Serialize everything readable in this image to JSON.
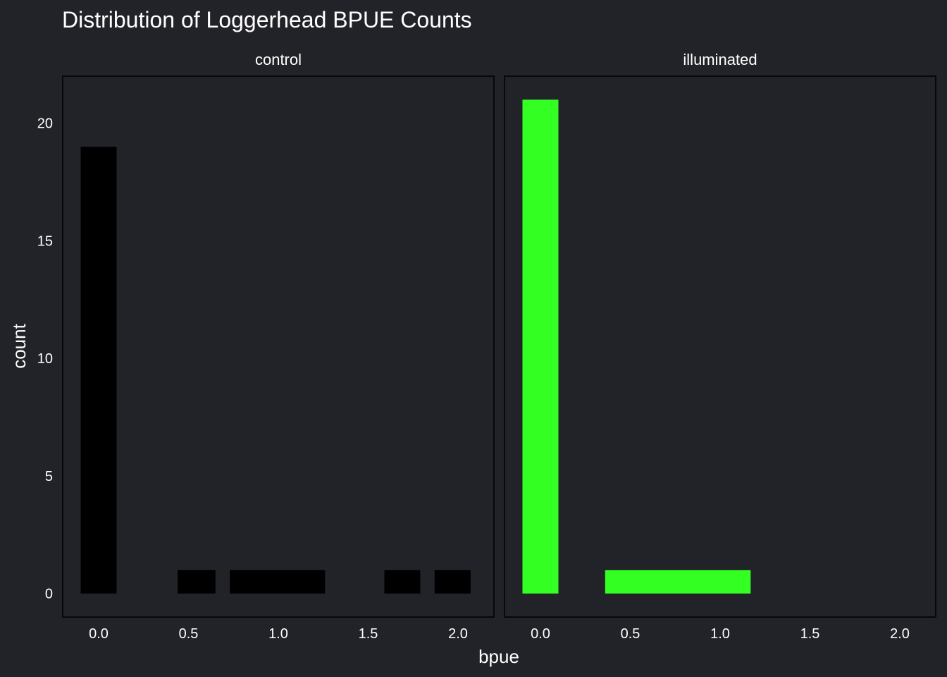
{
  "chart_data": {
    "type": "bar",
    "title": "Distribution of Loggerhead BPUE Counts",
    "xlabel": "bpue",
    "ylabel": "count",
    "xlim": [
      -0.2,
      2.2
    ],
    "ylim": [
      -1,
      22
    ],
    "x_ticks": [
      "0.0",
      "0.5",
      "1.0",
      "1.5",
      "2.0"
    ],
    "x_tick_values": [
      0,
      0.5,
      1.0,
      1.5,
      2.0
    ],
    "y_ticks": [
      "0",
      "5",
      "10",
      "15",
      "20"
    ],
    "y_tick_values": [
      0,
      5,
      10,
      15,
      20
    ],
    "facets": [
      {
        "name": "control",
        "color": "#000000",
        "bins": [
          {
            "x_start": -0.1,
            "x_end": 0.1,
            "count": 19
          },
          {
            "x_start": 0.44,
            "x_end": 0.65,
            "count": 1
          },
          {
            "x_start": 0.73,
            "x_end": 1.26,
            "count": 1
          },
          {
            "x_start": 1.59,
            "x_end": 1.79,
            "count": 1
          },
          {
            "x_start": 1.87,
            "x_end": 2.07,
            "count": 1
          }
        ]
      },
      {
        "name": "illuminated",
        "color": "#33ff22",
        "bins": [
          {
            "x_start": -0.1,
            "x_end": 0.1,
            "count": 21
          },
          {
            "x_start": 0.36,
            "x_end": 1.17,
            "count": 1
          }
        ]
      }
    ],
    "grid": false,
    "legend": "none"
  }
}
